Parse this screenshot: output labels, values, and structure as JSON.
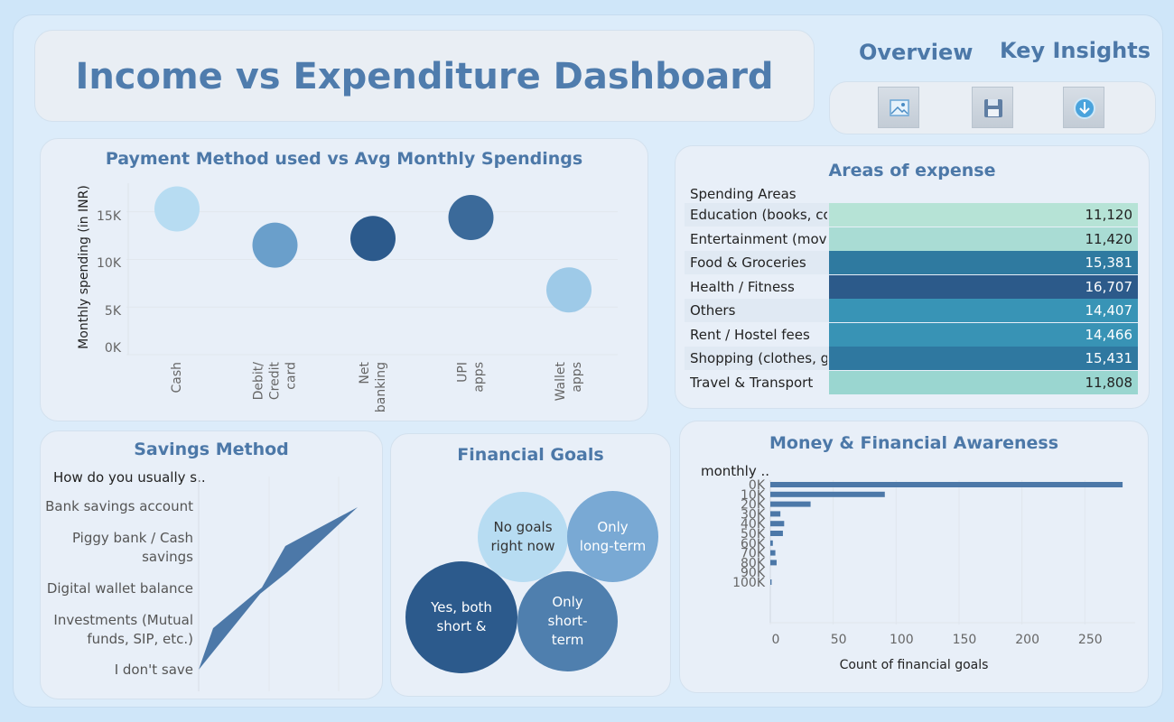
{
  "header": {
    "title": "Income vs Expenditure Dashboard",
    "nav": [
      "Overview",
      "Key Insights"
    ],
    "tools": [
      {
        "name": "image-icon"
      },
      {
        "name": "save-icon"
      },
      {
        "name": "download-icon"
      }
    ]
  },
  "payment_chart": {
    "title": "Payment Method used vs Avg Monthly Spendings",
    "ylabel": "Monthly spending (in INR)",
    "yticks": [
      "15K",
      "10K",
      "5K",
      "0K"
    ]
  },
  "expense_table": {
    "title": "Areas of expense",
    "header": "Spending Areas",
    "rows": [
      {
        "label": "Education (books, co..",
        "value": "11,120",
        "color": "#b6e3d6",
        "text_color": "#222222"
      },
      {
        "label": "Entertainment (mov..",
        "value": "11,420",
        "color": "#a9dcd4",
        "text_color": "#222222"
      },
      {
        "label": "Food & Groceries",
        "value": "15,381",
        "color": "#2f7aa0",
        "text_color": "#ffffff"
      },
      {
        "label": "Health / Fitness",
        "value": "16,707",
        "color": "#2c5a8a",
        "text_color": "#ffffff"
      },
      {
        "label": "Others",
        "value": "14,407",
        "color": "#3894b6",
        "text_color": "#ffffff"
      },
      {
        "label": "Rent / Hostel fees",
        "value": "14,466",
        "color": "#3893b5",
        "text_color": "#ffffff"
      },
      {
        "label": "Shopping (clothes, g..",
        "value": "15,431",
        "color": "#2f78a0",
        "text_color": "#ffffff"
      },
      {
        "label": "Travel & Transport",
        "value": "11,808",
        "color": "#9ad6d0",
        "text_color": "#222222"
      }
    ]
  },
  "savings": {
    "title": "Savings Method",
    "header": "How do you usually s..",
    "categories": [
      "Bank savings account",
      "Piggy bank / Cash savings",
      "Digital wallet balance",
      "Investments (Mutual funds, SIP, etc.)",
      "I don't save"
    ]
  },
  "goals": {
    "title": "Financial Goals",
    "bubbles": [
      {
        "label": "No goals right now",
        "color": "#b7dcf2",
        "text_color": "#333333"
      },
      {
        "label": "Only long-term",
        "color": "#79a9d4",
        "text_color": "#ffffff"
      },
      {
        "label": "Yes, both short &",
        "color": "#2c5a8c",
        "text_color": "#ffffff"
      },
      {
        "label": "Only short-term",
        "color": "#4f7fae",
        "text_color": "#ffffff"
      }
    ]
  },
  "awareness": {
    "title": "Money & Financial Awareness",
    "header": "monthly ..",
    "xlabel": "Count of financial goals"
  },
  "chart_data": [
    {
      "type": "scatter",
      "title": "Payment Method used vs Avg Monthly Spendings",
      "ylabel": "Monthly spending (in INR)",
      "categories": [
        "Cash",
        "Debit/ Credit card",
        "Net banking",
        "UPI apps",
        "Wallet apps"
      ],
      "values": [
        15300,
        11500,
        12200,
        14400,
        6800
      ],
      "colors": [
        "#b7dcf2",
        "#6a9fcb",
        "#2c5a8c",
        "#3b6a9a",
        "#9ecae8"
      ],
      "ylim": [
        0,
        18000
      ],
      "yticks": [
        0,
        5000,
        10000,
        15000
      ],
      "grid": true
    },
    {
      "type": "area",
      "title": "Savings Method",
      "categories": [
        "Bank savings account",
        "Piggy bank / Cash savings",
        "Digital wallet balance",
        "Investments (Mutual funds, SIP, etc.)",
        "I don't save"
      ]
    },
    {
      "type": "bar",
      "title": "Money & Financial Awareness",
      "xlabel": "Count of financial goals",
      "categories": [
        "0K",
        "10K",
        "20K",
        "30K",
        "40K",
        "50K",
        "60K",
        "70K",
        "80K",
        "90K",
        "100K"
      ],
      "values": [
        280,
        91,
        32,
        8,
        11,
        10,
        2,
        4,
        5,
        0,
        1
      ],
      "xlim": [
        0,
        290
      ],
      "xticks": [
        0,
        50,
        100,
        150,
        200,
        250
      ],
      "color": "#4c78a8",
      "grid": true
    }
  ]
}
